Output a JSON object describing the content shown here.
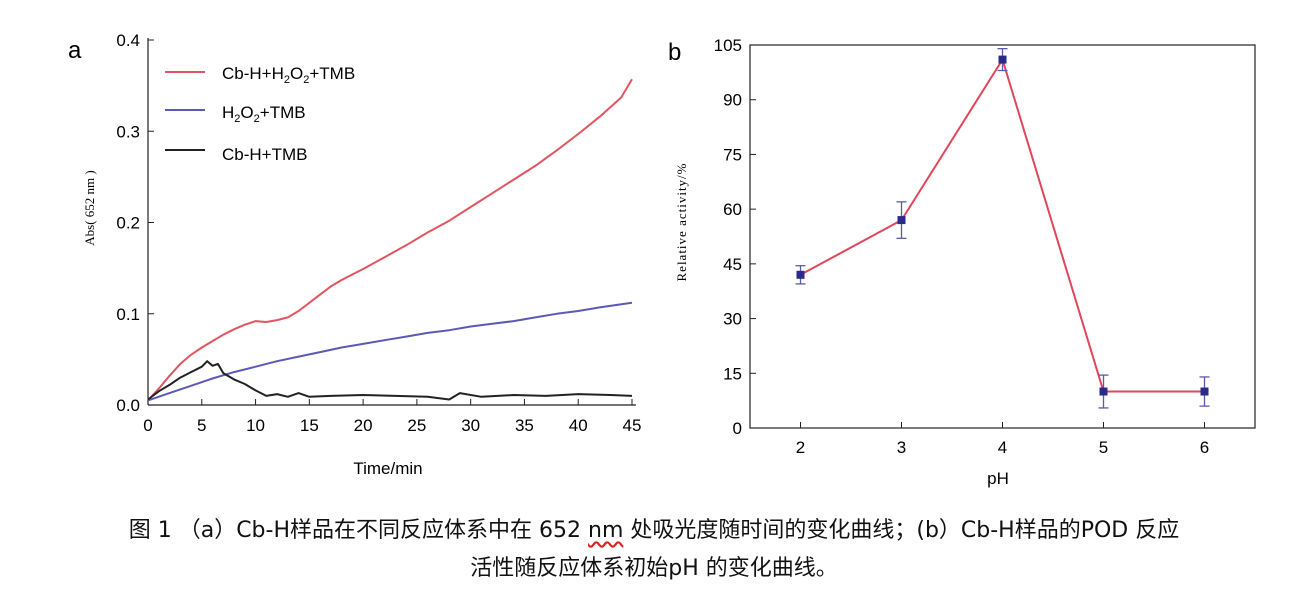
{
  "colors": {
    "cbh_h2o2_tmb": "#e05560",
    "h2o2_tmb": "#5a5ab5",
    "cbh_tmb": "#222222",
    "ph_line": "#e0455a",
    "ph_marker": "#2a2a8a"
  },
  "chart_data": [
    {
      "panel": "a",
      "type": "line",
      "title": "",
      "xlabel": "Time/min",
      "ylabel": "Abs( 652 nm )",
      "xlim": [
        0,
        45
      ],
      "ylim": [
        0,
        0.4
      ],
      "xticks": [
        "0",
        "5",
        "10",
        "15",
        "20",
        "25",
        "30",
        "35",
        "40",
        "45"
      ],
      "yticks": [
        "0.0",
        "0.1",
        "0.2",
        "0.3",
        "0.4"
      ],
      "legend_position": "top-left",
      "grid": false,
      "series": [
        {
          "name": "Cb-H+H2O2+TMB",
          "legend_parts": [
            "Cb-H+H",
            "2",
            "O",
            "2",
            "+TMB"
          ],
          "color": "#e05560",
          "x": [
            0,
            1,
            2,
            3,
            4,
            5,
            6,
            7,
            8,
            9,
            10,
            11,
            12,
            13,
            14,
            15,
            16,
            17,
            18,
            20,
            22,
            24,
            26,
            28,
            30,
            32,
            34,
            36,
            38,
            40,
            42,
            44,
            45
          ],
          "y": [
            0.005,
            0.018,
            0.032,
            0.045,
            0.055,
            0.063,
            0.07,
            0.077,
            0.083,
            0.088,
            0.092,
            0.091,
            0.093,
            0.096,
            0.103,
            0.112,
            0.121,
            0.13,
            0.137,
            0.149,
            0.162,
            0.175,
            0.189,
            0.202,
            0.217,
            0.232,
            0.247,
            0.262,
            0.279,
            0.297,
            0.316,
            0.337,
            0.357
          ]
        },
        {
          "name": "H2O2+TMB",
          "legend_parts": [
            "H",
            "2",
            "O",
            "2",
            "+TMB"
          ],
          "color": "#5a5ab5",
          "x": [
            0,
            2,
            4,
            6,
            8,
            10,
            12,
            14,
            16,
            18,
            20,
            22,
            24,
            26,
            28,
            30,
            32,
            34,
            36,
            38,
            40,
            42,
            45
          ],
          "y": [
            0.005,
            0.013,
            0.021,
            0.029,
            0.036,
            0.042,
            0.048,
            0.053,
            0.058,
            0.063,
            0.067,
            0.071,
            0.075,
            0.079,
            0.082,
            0.086,
            0.089,
            0.092,
            0.096,
            0.1,
            0.103,
            0.107,
            0.112
          ]
        },
        {
          "name": "Cb-H+TMB",
          "legend_parts": [
            "Cb-H+TMB"
          ],
          "color": "#222222",
          "x": [
            0,
            1,
            2,
            3,
            4,
            5,
            5.5,
            6,
            6.5,
            7,
            8,
            9,
            10,
            11,
            12,
            13,
            14,
            15,
            17,
            20,
            23,
            26,
            28,
            29,
            31,
            34,
            37,
            40,
            43,
            45
          ],
          "y": [
            0.006,
            0.015,
            0.022,
            0.03,
            0.036,
            0.042,
            0.048,
            0.043,
            0.045,
            0.035,
            0.028,
            0.023,
            0.016,
            0.01,
            0.012,
            0.009,
            0.013,
            0.009,
            0.01,
            0.011,
            0.01,
            0.009,
            0.006,
            0.013,
            0.009,
            0.011,
            0.01,
            0.012,
            0.011,
            0.01
          ]
        }
      ]
    },
    {
      "panel": "b",
      "type": "line",
      "title": "",
      "xlabel": "pH",
      "ylabel": "Relative activity/%",
      "xlim": [
        1.5,
        6.5
      ],
      "ylim": [
        0,
        105
      ],
      "xticks": [
        "2",
        "3",
        "4",
        "5",
        "6"
      ],
      "yticks": [
        "0",
        "15",
        "30",
        "45",
        "60",
        "75",
        "90",
        "105"
      ],
      "grid": false,
      "series": [
        {
          "color": "#e0455a",
          "x": [
            2,
            3,
            4,
            5,
            6
          ],
          "y": [
            42,
            57,
            101,
            10,
            10
          ],
          "error": [
            2.5,
            5,
            3,
            4.5,
            4
          ]
        }
      ]
    }
  ],
  "panels": {
    "a": {
      "label": "a",
      "legend": {
        "s1": {
          "p1": "Cb-H+H",
          "p2": "2",
          "p3": "O",
          "p4": "2",
          "p5": "+TMB"
        },
        "s2": {
          "p1": "H",
          "p2": "2",
          "p3": "O",
          "p4": "2",
          "p5": "+TMB"
        },
        "s3": {
          "p1": "Cb-H+TMB"
        }
      }
    },
    "b": {
      "label": "b"
    }
  },
  "caption": {
    "line1_pre": "图 1 （a）Cb-H样品在不同反应体系中在 652 ",
    "line1_nm": "nm",
    "line1_post": " 处吸光度随时间的变化曲线；(b）Cb-H样品的POD 反应",
    "line2": "活性随反应体系初始pH 的变化曲线。"
  }
}
